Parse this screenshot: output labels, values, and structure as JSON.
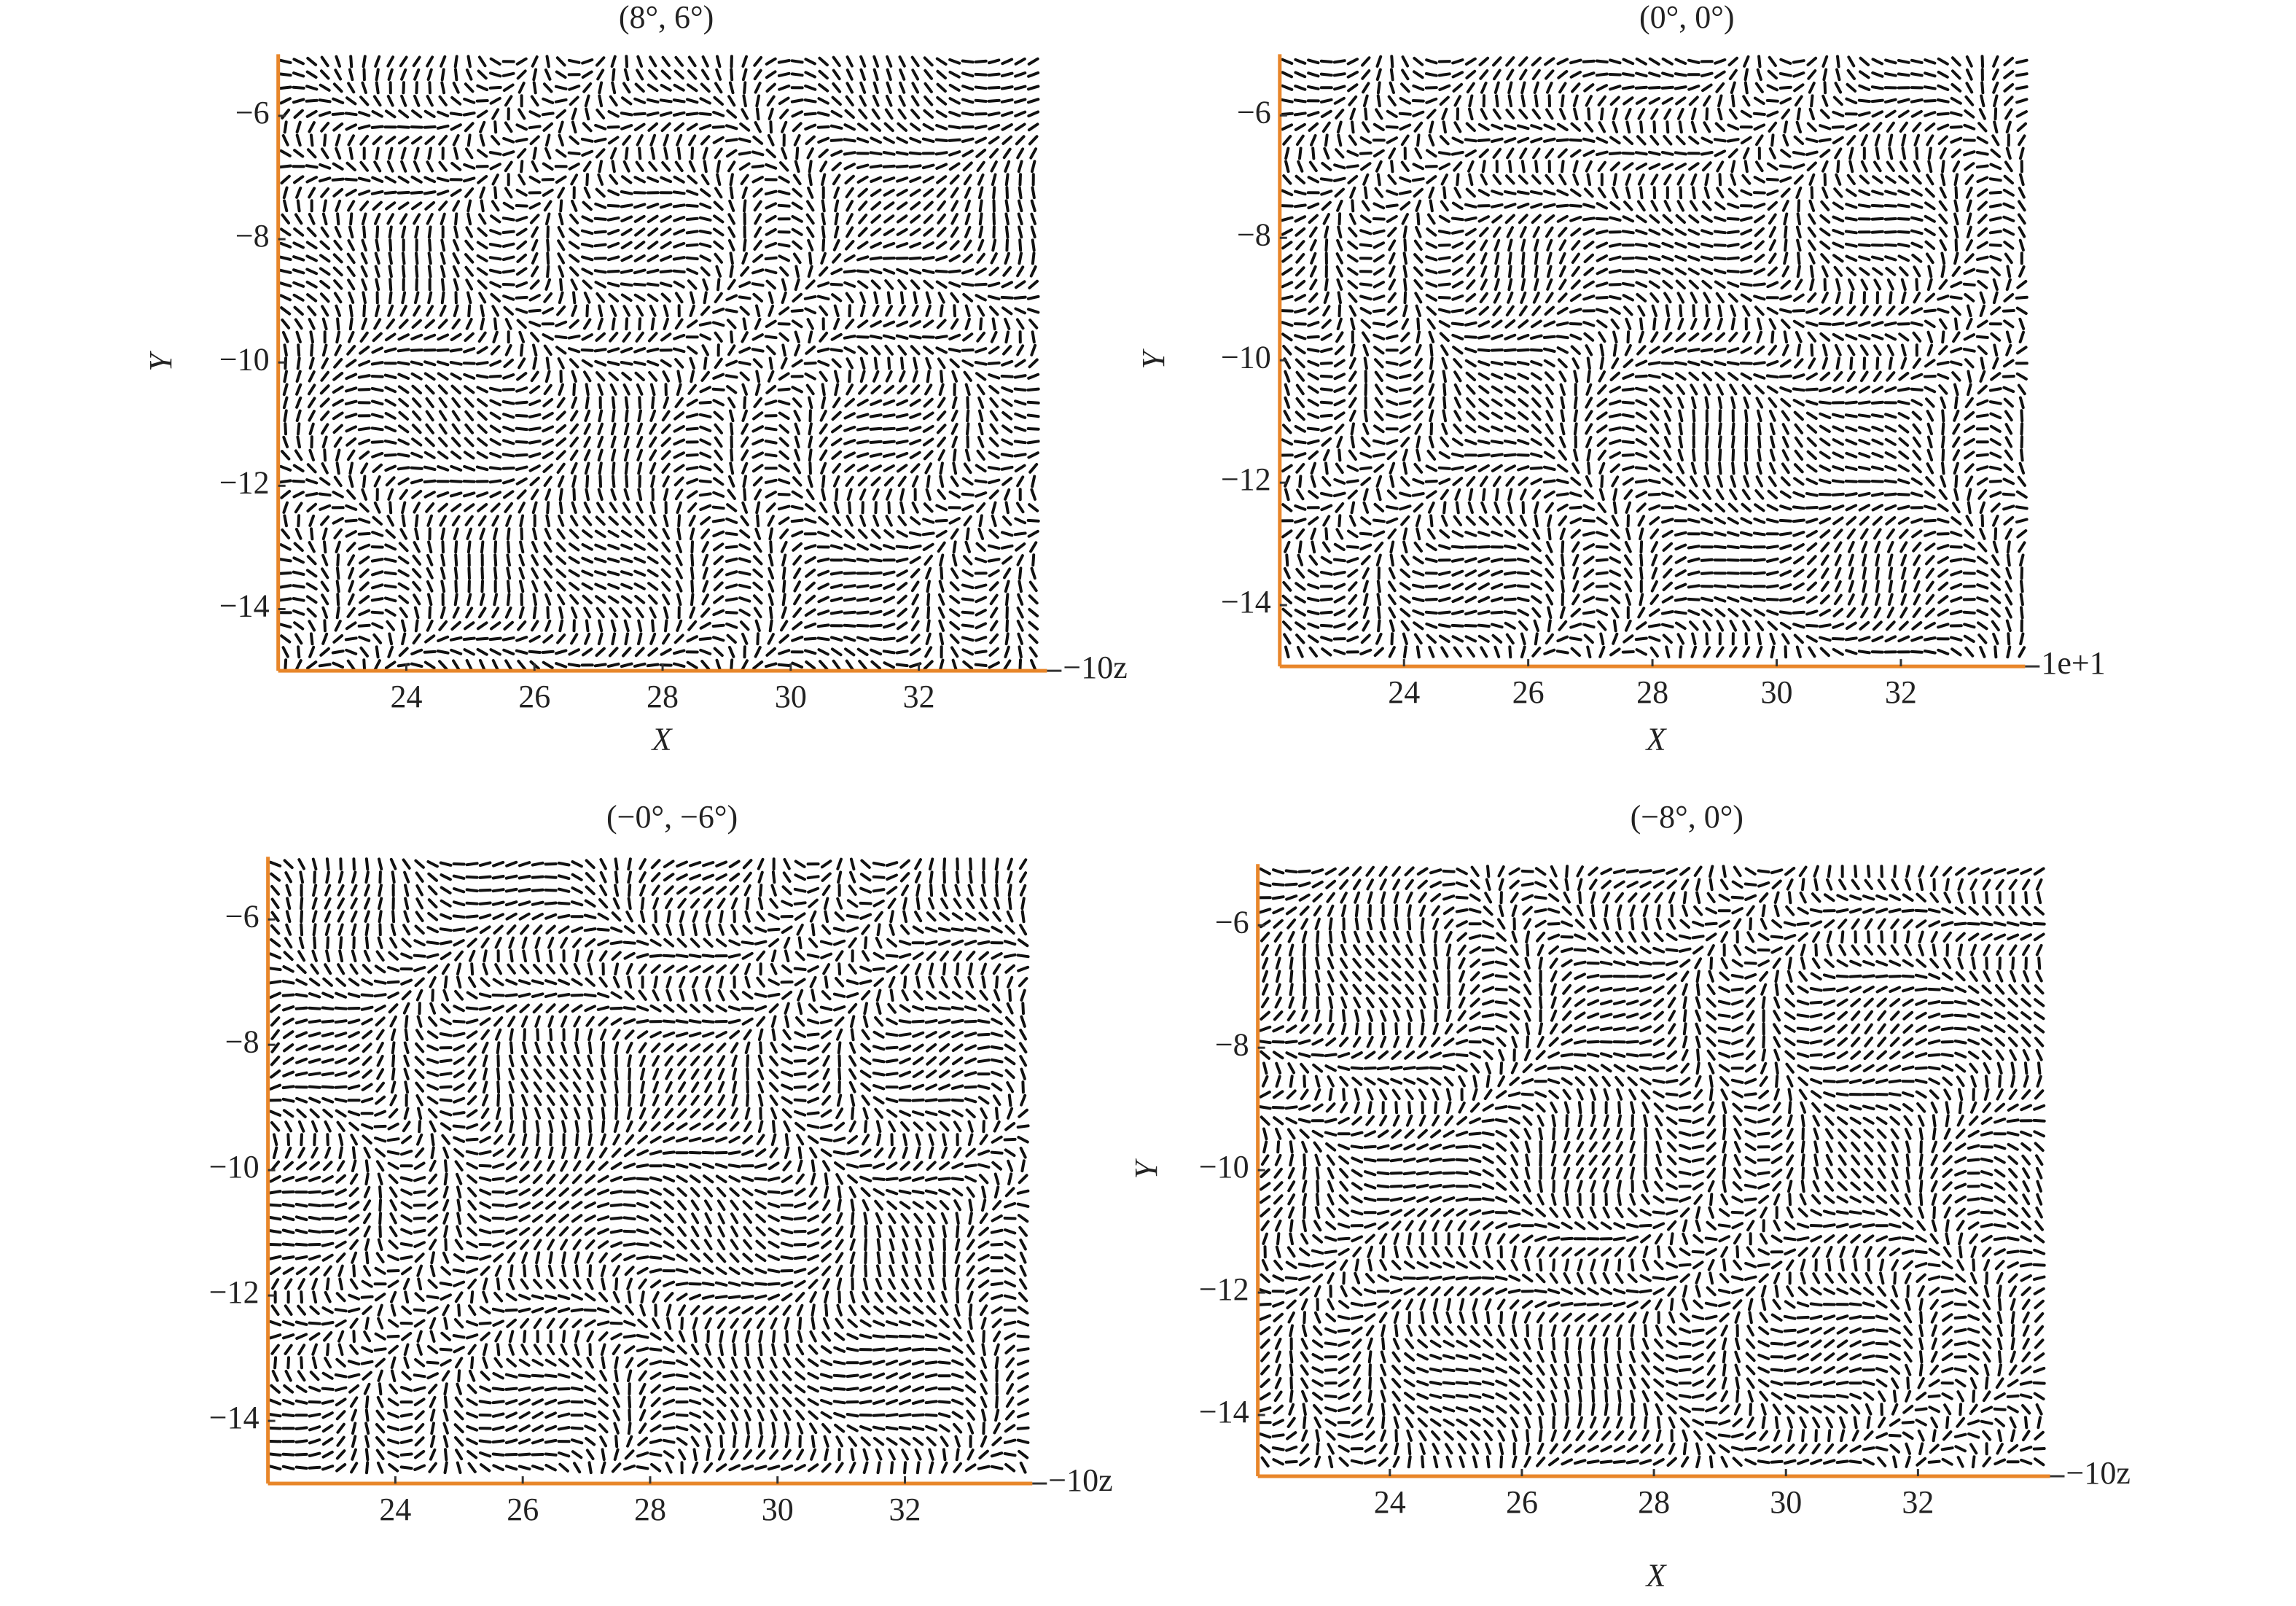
{
  "chart_data": [
    {
      "type": "quiver",
      "title": "(8°, 6°)",
      "x_label": "X",
      "y_label": "Y",
      "corner_label": "−10z",
      "xlim": [
        22,
        34
      ],
      "ylim": [
        -15,
        -5
      ],
      "xticks": [
        24,
        26,
        28,
        30,
        32
      ],
      "yticks": [
        {
          "value": -6,
          "label": "−6"
        },
        {
          "value": -8,
          "label": "−8"
        },
        {
          "value": -10,
          "label": "−10"
        },
        {
          "value": -12,
          "label": "−12"
        },
        {
          "value": -14,
          "label": "−14"
        }
      ]
    },
    {
      "type": "quiver",
      "title": "(0°, 0°)",
      "x_label": "X",
      "y_label": "Y",
      "corner_label": "1e+1",
      "xlim": [
        22,
        34
      ],
      "ylim": [
        -15,
        -5
      ],
      "xticks": [
        24,
        26,
        28,
        30,
        32
      ],
      "yticks": [
        {
          "value": -6,
          "label": "−6"
        },
        {
          "value": -8,
          "label": "−8"
        },
        {
          "value": -10,
          "label": "−10"
        },
        {
          "value": -12,
          "label": "−12"
        },
        {
          "value": -14,
          "label": "−14"
        }
      ]
    },
    {
      "type": "quiver",
      "title": "(−0°, −6°)",
      "corner_label": "−10z",
      "xlim": [
        22,
        34
      ],
      "ylim": [
        -15,
        -5
      ],
      "xticks": [
        24,
        26,
        28,
        30,
        32
      ],
      "yticks": [
        {
          "value": -6,
          "label": "−6"
        },
        {
          "value": -8,
          "label": "−8"
        },
        {
          "value": -10,
          "label": "−10"
        },
        {
          "value": -12,
          "label": "−12"
        },
        {
          "value": -14,
          "label": "−14"
        }
      ]
    },
    {
      "type": "quiver",
      "title": "(−8°, 0°)",
      "x_label": "X",
      "y_label": "Y",
      "corner_label": "−10z",
      "xlim": [
        22,
        34
      ],
      "ylim": [
        -15,
        -5
      ],
      "xticks": [
        24,
        26,
        28,
        30,
        32
      ],
      "yticks": [
        {
          "value": -6,
          "label": "−6"
        },
        {
          "value": -8,
          "label": "−8"
        },
        {
          "value": -10,
          "label": "−10"
        },
        {
          "value": -12,
          "label": "−12"
        },
        {
          "value": -14,
          "label": "−14"
        }
      ]
    }
  ]
}
